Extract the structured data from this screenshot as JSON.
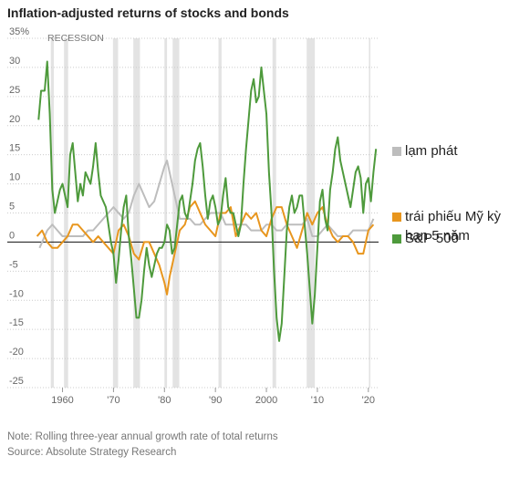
{
  "chart_data": {
    "type": "line",
    "title": "Inflation-adjusted returns of stocks and bonds",
    "recession_label": "RECESSION",
    "note": "Note: Rolling three-year annual growth rate of total returns",
    "source": "Source: Absolute Strategy Research",
    "xlim": [
      1954,
      2022
    ],
    "xticks": [
      1960,
      {
        "value": 1970,
        "label": "'70"
      },
      {
        "value": 1980,
        "label": "'80"
      },
      {
        "value": 1990,
        "label": "'90"
      },
      2000,
      {
        "value": 2010,
        "label": "'10"
      },
      {
        "value": 2020,
        "label": "'20"
      }
    ],
    "ylim": [
      -25,
      35
    ],
    "yticks": [
      -25,
      -20,
      -15,
      -10,
      -5,
      0,
      5,
      10,
      15,
      20,
      25,
      30,
      {
        "value": 35,
        "label": "35%"
      }
    ],
    "grid": true,
    "recessions": [
      [
        1957.7,
        1958.3
      ],
      [
        1960.3,
        1961.1
      ],
      [
        1969.9,
        1970.9
      ],
      [
        1973.9,
        1975.2
      ],
      [
        1980.0,
        1980.5
      ],
      [
        1981.6,
        1982.9
      ],
      [
        1990.6,
        1991.2
      ],
      [
        2001.2,
        2001.9
      ],
      [
        2007.9,
        2009.5
      ],
      [
        2020.1,
        2020.4
      ]
    ],
    "series": [
      {
        "name": "lạm phát",
        "color": "#bdbdbd",
        "x": [
          1955.5,
          1956,
          1957,
          1958,
          1959,
          1960,
          1961,
          1962,
          1963,
          1964,
          1965,
          1966,
          1967,
          1968,
          1969,
          1970,
          1971,
          1972,
          1973,
          1974,
          1975,
          1976,
          1977,
          1978,
          1979,
          1980,
          1980.5,
          1981,
          1982,
          1983,
          1984,
          1985,
          1986,
          1987,
          1988,
          1989,
          1990,
          1991,
          1992,
          1993,
          1994,
          1995,
          1996,
          1997,
          1998,
          1999,
          2000,
          2001,
          2002,
          2003,
          2004,
          2005,
          2006,
          2007,
          2008,
          2009,
          2010,
          2011,
          2012,
          2013,
          2014,
          2015,
          2016,
          2017,
          2018,
          2019,
          2020,
          2021
        ],
        "values": [
          -1,
          0,
          2,
          3,
          2,
          1,
          1,
          1,
          1,
          1,
          2,
          2,
          3,
          4,
          5,
          6,
          5,
          4,
          5,
          8,
          10,
          8,
          6,
          7,
          10,
          13,
          14,
          12,
          8,
          4,
          4,
          4,
          3,
          3,
          4,
          5,
          5,
          5,
          3,
          3,
          3,
          3,
          3,
          2,
          2,
          2,
          3,
          3,
          2,
          2,
          3,
          3,
          3,
          3,
          4,
          1,
          1,
          2,
          3,
          2,
          1,
          1,
          1,
          2,
          2,
          2,
          2,
          4
        ]
      },
      {
        "name": "trái phiếu Mỹ kỳ hạn 5 năm",
        "color": "#e8961e",
        "x": [
          1955,
          1956,
          1956.5,
          1957,
          1958,
          1959,
          1960,
          1961,
          1962,
          1963,
          1964,
          1965,
          1966,
          1967,
          1968,
          1969,
          1970,
          1971,
          1972,
          1973,
          1974,
          1975,
          1976,
          1977,
          1978,
          1979,
          1980,
          1980.5,
          1981,
          1982,
          1983,
          1984,
          1985,
          1986,
          1987,
          1988,
          1989,
          1990,
          1991,
          1992,
          1993,
          1994,
          1995,
          1996,
          1997,
          1998,
          1999,
          2000,
          2001,
          2002,
          2003,
          2004,
          2005,
          2006,
          2007,
          2008,
          2009,
          2010,
          2011,
          2012,
          2013,
          2014,
          2015,
          2016,
          2017,
          2018,
          2019,
          2020,
          2021
        ],
        "values": [
          1,
          2,
          1,
          0,
          -1,
          -1,
          0,
          1,
          3,
          3,
          2,
          1,
          0,
          1,
          0,
          -1,
          -2,
          2,
          3,
          1,
          -2,
          -3,
          0,
          0,
          -2,
          -4,
          -7,
          -9,
          -6,
          -2,
          2,
          3,
          6,
          7,
          5,
          3,
          2,
          1,
          5,
          5,
          6,
          1,
          3,
          5,
          4,
          5,
          2,
          1,
          4,
          6,
          6,
          3,
          1,
          -1,
          2,
          5,
          3,
          5,
          6,
          3,
          1,
          0,
          1,
          1,
          0,
          -2,
          -2,
          2,
          3
        ]
      },
      {
        "name": "S&P 500",
        "color": "#4e9a3c",
        "x": [
          1955.3,
          1955.8,
          1956.5,
          1957,
          1957.5,
          1958,
          1958.5,
          1959,
          1959.5,
          1960,
          1960.5,
          1961,
          1961.5,
          1962,
          1962.5,
          1963,
          1963.5,
          1964,
          1964.5,
          1965,
          1965.5,
          1966,
          1966.5,
          1967,
          1967.5,
          1968,
          1968.5,
          1969,
          1969.5,
          1970,
          1970.5,
          1971,
          1971.5,
          1972,
          1972.5,
          1973,
          1973.5,
          1974,
          1974.5,
          1975,
          1975.5,
          1976,
          1976.5,
          1977,
          1977.5,
          1978,
          1978.5,
          1979,
          1979.5,
          1980,
          1980.5,
          1981,
          1981.5,
          1982,
          1982.5,
          1983,
          1983.5,
          1984,
          1984.5,
          1985,
          1985.5,
          1986,
          1986.5,
          1987,
          1987.5,
          1988,
          1988.5,
          1989,
          1989.5,
          1990,
          1990.5,
          1991,
          1991.5,
          1992,
          1992.5,
          1993,
          1993.5,
          1994,
          1994.5,
          1995,
          1995.5,
          1996,
          1996.5,
          1997,
          1997.5,
          1998,
          1998.5,
          1999,
          1999.5,
          2000,
          2000.5,
          2001,
          2001.5,
          2002,
          2002.5,
          2003,
          2003.5,
          2004,
          2004.5,
          2005,
          2005.5,
          2006,
          2006.5,
          2007,
          2007.5,
          2008,
          2008.5,
          2009,
          2009.5,
          2010,
          2010.5,
          2011,
          2011.5,
          2012,
          2012.5,
          2013,
          2013.5,
          2014,
          2014.5,
          2015,
          2015.5,
          2016,
          2016.5,
          2017,
          2017.5,
          2018,
          2018.5,
          2019,
          2019.5,
          2020,
          2020.5,
          2021,
          2021.5
        ],
        "values": [
          21,
          26,
          26,
          31,
          22,
          9,
          5,
          7,
          9,
          10,
          8,
          6,
          15,
          17,
          12,
          7,
          10,
          8,
          12,
          11,
          10,
          13,
          17,
          12,
          8,
          7,
          6,
          3,
          0,
          -2,
          -7,
          -3,
          2,
          6,
          8,
          1,
          -3,
          -8,
          -13,
          -13,
          -10,
          -5,
          -1,
          -4,
          -6,
          -4,
          -2,
          -1,
          -1,
          0,
          3,
          2,
          -2,
          -1,
          3,
          7,
          8,
          5,
          4,
          7,
          10,
          14,
          16,
          17,
          13,
          8,
          4,
          7,
          8,
          6,
          3,
          4,
          8,
          11,
          6,
          5,
          5,
          3,
          1,
          3,
          10,
          16,
          21,
          26,
          28,
          24,
          25,
          30,
          26,
          22,
          12,
          5,
          -5,
          -13,
          -17,
          -14,
          -6,
          2,
          6,
          8,
          5,
          6,
          8,
          8,
          3,
          -2,
          -8,
          -14,
          -9,
          -1,
          7,
          9,
          4,
          2,
          9,
          12,
          16,
          18,
          14,
          12,
          10,
          8,
          6,
          9,
          12,
          13,
          11,
          5,
          10,
          11,
          7,
          12,
          16
        ]
      }
    ]
  }
}
